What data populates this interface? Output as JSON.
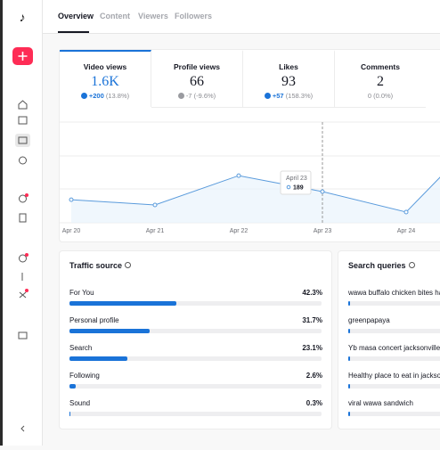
{
  "tabs": [
    "Overview",
    "Content",
    "Viewers",
    "Followers"
  ],
  "metrics": [
    {
      "label": "Video views",
      "value": "1.6K",
      "change": "+200",
      "pct": "(13.8%)",
      "direction": "up"
    },
    {
      "label": "Profile views",
      "value": "66",
      "change": "-7",
      "pct": "(-9.6%)",
      "direction": "down"
    },
    {
      "label": "Likes",
      "value": "93",
      "change": "+57",
      "pct": "(158.3%)",
      "direction": "up"
    },
    {
      "label": "Comments",
      "value": "2",
      "change": "0",
      "pct": "(0.0%)",
      "direction": "none"
    }
  ],
  "chart_data": {
    "type": "line",
    "categories": [
      "Apr 20",
      "Apr 21",
      "Apr 22",
      "Apr 23",
      "Apr 24",
      null
    ],
    "values": [
      140,
      108,
      286,
      189,
      65,
      586
    ],
    "ylim": [
      0,
      600
    ],
    "color": "#5a9bdc",
    "tooltip": {
      "date": "April 23",
      "value": 189
    }
  },
  "traffic_source": {
    "title": "Traffic source",
    "items": [
      {
        "name": "For You",
        "value": 42.3,
        "label": "42.3%"
      },
      {
        "name": "Personal profile",
        "value": 31.7,
        "label": "31.7%"
      },
      {
        "name": "Search",
        "value": 23.1,
        "label": "23.1%"
      },
      {
        "name": "Following",
        "value": 2.6,
        "label": "2.6%"
      },
      {
        "name": "Sound",
        "value": 0.3,
        "label": "0.3%"
      }
    ]
  },
  "search_queries": {
    "title": "Search queries",
    "items": [
      "wawa buffalo chicken bites hal",
      "greenpapaya",
      "Yb masa concert jacksonville",
      "Healthy place to eat in jacksonv",
      "viral wawa sandwich"
    ]
  }
}
